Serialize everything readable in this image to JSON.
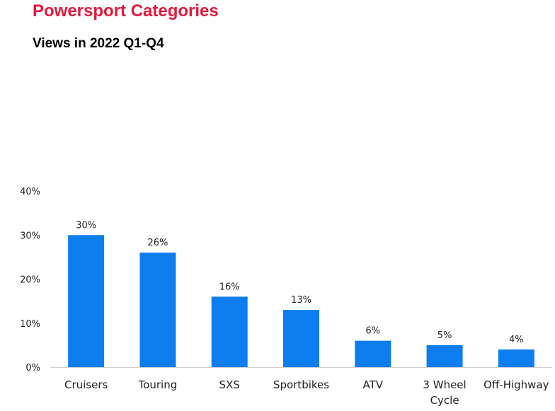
{
  "header": {
    "title": "Powersport Categories",
    "subtitle": "Views in 2022 Q1-Q4"
  },
  "colors": {
    "title": "#e0193d",
    "bar": "#0d7df0",
    "text": "#222222",
    "axis": "#d0d0d0"
  },
  "chart_data": {
    "type": "bar",
    "title": "Powersport Categories",
    "subtitle": "Views in 2022 Q1-Q4",
    "categories": [
      "Cruisers",
      "Touring",
      "SXS",
      "Sportbikes",
      "ATV",
      "3 Wheel Cycle",
      "Off-Highway"
    ],
    "category_label_lines": [
      [
        "Cruisers"
      ],
      [
        "Touring"
      ],
      [
        "SXS"
      ],
      [
        "Sportbikes"
      ],
      [
        "ATV"
      ],
      [
        "3 Wheel",
        "Cycle"
      ],
      [
        "Off-Highway"
      ]
    ],
    "values": [
      30,
      26,
      16,
      13,
      6,
      5,
      4
    ],
    "data_labels": [
      "30%",
      "26%",
      "16%",
      "13%",
      "6%",
      "5%",
      "4%"
    ],
    "y_ticks": [
      0,
      10,
      20,
      30,
      40
    ],
    "y_tick_labels": [
      "0%",
      "10%",
      "20%",
      "30%",
      "40%"
    ],
    "ylim": [
      0,
      40
    ],
    "xlabel": "",
    "ylabel": "",
    "grid": false,
    "legend": "none"
  }
}
